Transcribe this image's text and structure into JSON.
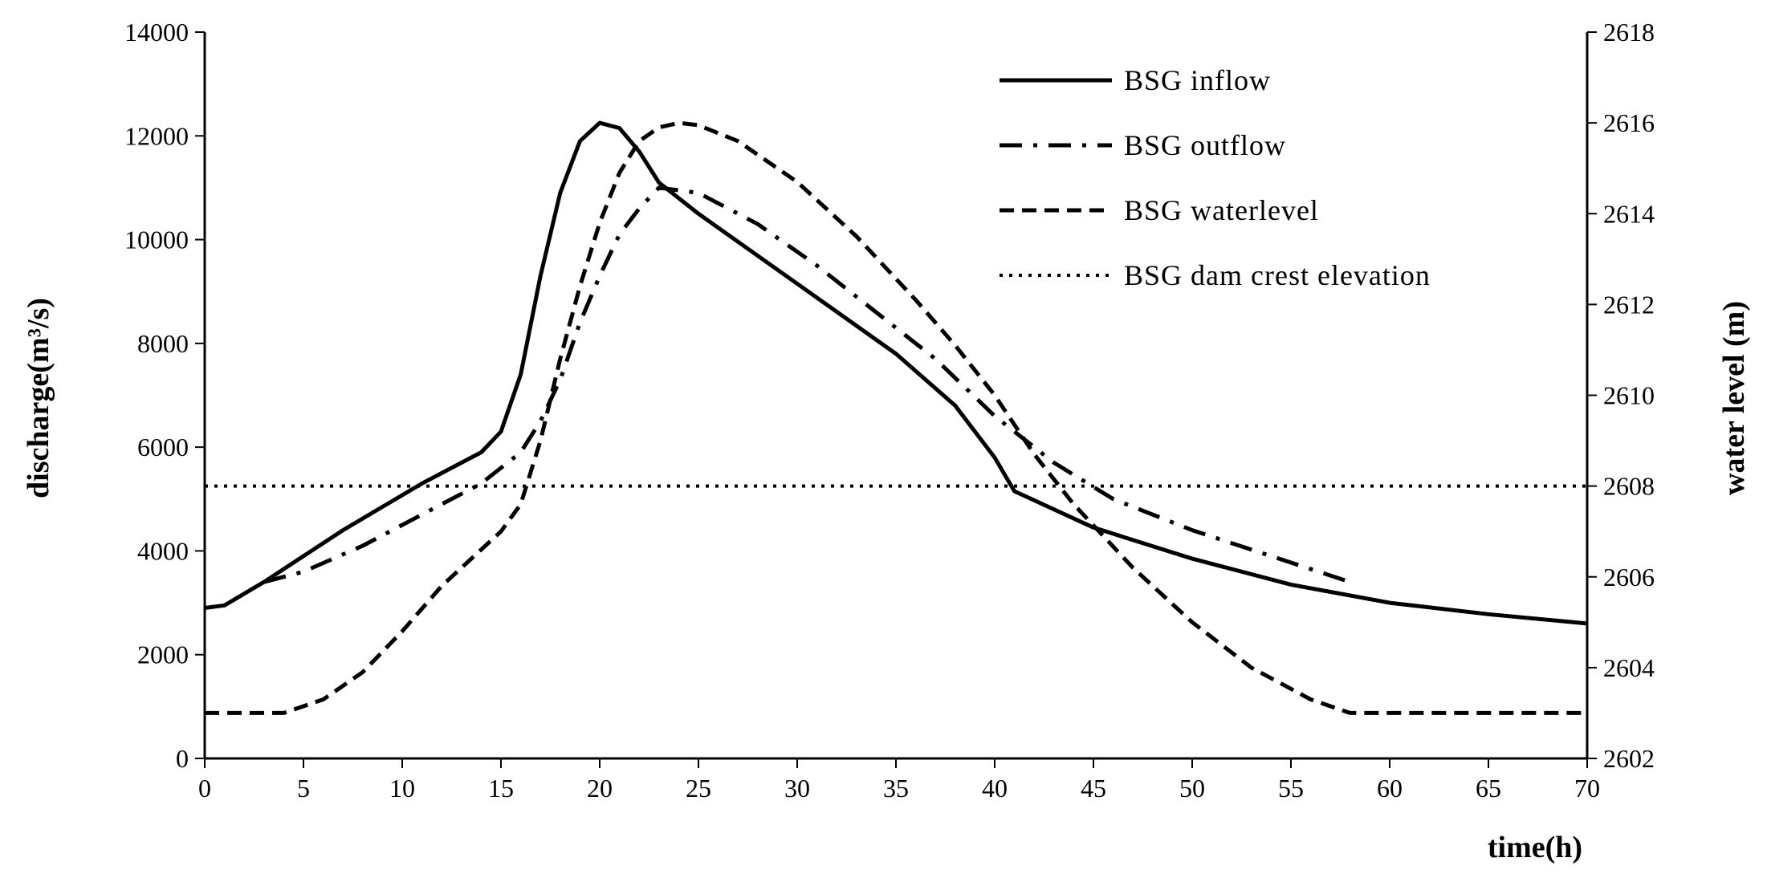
{
  "chart_data": {
    "type": "line",
    "title": "",
    "xlabel": "time(h)",
    "ylabel": "discharge(m³/s)",
    "ylabel_right": "water level (m)",
    "xlim": [
      0,
      70
    ],
    "ylim": [
      0,
      14000
    ],
    "ylim_right": [
      2602,
      2618
    ],
    "xticks": [
      0,
      5,
      10,
      15,
      20,
      25,
      30,
      35,
      40,
      45,
      50,
      55,
      60,
      65,
      70
    ],
    "yticks": [
      0,
      2000,
      4000,
      6000,
      8000,
      10000,
      12000,
      14000
    ],
    "yticks_right": [
      2602,
      2604,
      2606,
      2608,
      2610,
      2612,
      2614,
      2616,
      2618
    ],
    "grid": false,
    "legend_position": "top-right",
    "series": [
      {
        "name": "BSG inflow",
        "axis": "left",
        "style": "solid",
        "x": [
          0,
          1,
          3,
          5,
          7,
          9,
          11,
          13,
          14,
          15,
          16,
          17,
          18,
          19,
          20,
          21,
          22,
          23,
          25,
          30,
          35,
          38,
          40,
          41,
          45,
          50,
          55,
          60,
          65,
          70
        ],
        "y": [
          2900,
          2950,
          3400,
          3900,
          4400,
          4850,
          5300,
          5700,
          5900,
          6300,
          7400,
          9300,
          10900,
          11900,
          12250,
          12150,
          11700,
          11100,
          10500,
          9150,
          7800,
          6800,
          5800,
          5150,
          4450,
          3850,
          3350,
          3000,
          2780,
          2600
        ]
      },
      {
        "name": "BSG outflow",
        "axis": "left",
        "style": "dashdot",
        "x": [
          3,
          5,
          8,
          11,
          14,
          16,
          17,
          18,
          19,
          20,
          21,
          22,
          23,
          25,
          28,
          31,
          34,
          37,
          40,
          43,
          46,
          50,
          54,
          58
        ],
        "y": [
          3400,
          3600,
          4100,
          4700,
          5300,
          5900,
          6500,
          7300,
          8400,
          9300,
          10100,
          10600,
          11000,
          10900,
          10300,
          9500,
          8600,
          7700,
          6600,
          5700,
          5000,
          4400,
          3900,
          3400
        ]
      },
      {
        "name": "BSG waterlevel",
        "axis": "right",
        "style": "dashed",
        "x": [
          0,
          2,
          4,
          6,
          8,
          10,
          12,
          14,
          15,
          16,
          17,
          18,
          19,
          20,
          21,
          22,
          23,
          24,
          25,
          27,
          30,
          33,
          36,
          38,
          40,
          42,
          44,
          47,
          50,
          53,
          56,
          58,
          60,
          65,
          70
        ],
        "y": [
          2603.0,
          2603.0,
          2603.0,
          2603.3,
          2603.9,
          2604.8,
          2605.8,
          2606.6,
          2607.0,
          2607.6,
          2609.0,
          2610.8,
          2612.4,
          2613.8,
          2614.9,
          2615.6,
          2615.9,
          2616.0,
          2615.95,
          2615.6,
          2614.7,
          2613.5,
          2612.1,
          2611.1,
          2610.0,
          2608.7,
          2607.6,
          2606.2,
          2605.0,
          2604.0,
          2603.3,
          2603.0,
          2603.0,
          2603.0,
          2603.0
        ]
      },
      {
        "name": "BSG dam crest elevation",
        "axis": "right",
        "style": "dotted",
        "x": [
          0,
          70
        ],
        "y": [
          2608,
          2608
        ]
      }
    ]
  }
}
